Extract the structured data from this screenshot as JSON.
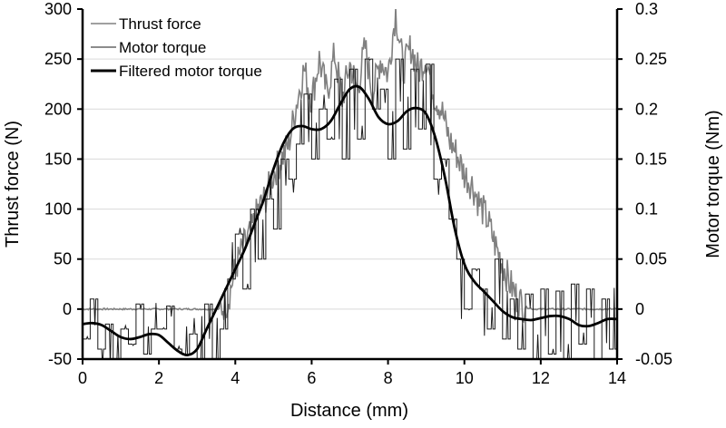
{
  "chart_data": {
    "type": "line",
    "xlabel": "Distance (mm)",
    "ylabel": "Thrust force (N)",
    "y2label": "Motor torque (Nm)",
    "xlim": [
      0,
      14
    ],
    "ylim": [
      -50,
      300
    ],
    "y2lim": [
      -0.05,
      0.3
    ],
    "x_ticks": [
      "0",
      "2",
      "4",
      "6",
      "8",
      "10",
      "12",
      "14"
    ],
    "y_ticks": [
      "300",
      "250",
      "200",
      "150",
      "100",
      "50",
      "0",
      "-50"
    ],
    "y2_ticks": [
      "0.3",
      "0.25",
      "0.2",
      "0.15",
      "0.1",
      "0.05",
      "0",
      "-0.05"
    ],
    "grid": "horizontal",
    "legend_position": "top-left",
    "legend": [
      "Thrust force",
      "Motor torque",
      "Filtered motor torque"
    ],
    "colors": {
      "thrust": "#808080",
      "torque": "#1a1a1a",
      "filtered": "#000000",
      "grid": "#d9d9d9"
    },
    "series": [
      {
        "name": "Thrust force",
        "axis": "left",
        "x_start": 0,
        "x_step": 0.2,
        "values": [
          0,
          0,
          0,
          0,
          0,
          0,
          0,
          0,
          0,
          0,
          0,
          0,
          0,
          0,
          0,
          0,
          0,
          0,
          0,
          8,
          40,
          62,
          75,
          100,
          112,
          135,
          150,
          165,
          205,
          240,
          210,
          250,
          215,
          255,
          210,
          245,
          220,
          262,
          215,
          250,
          235,
          298,
          240,
          262,
          238,
          252,
          215,
          200,
          170,
          155,
          135,
          125,
          105,
          90,
          65,
          45,
          25,
          10,
          2,
          0,
          0,
          0,
          0,
          0,
          0,
          0,
          0,
          0,
          0,
          0,
          0
        ]
      },
      {
        "name": "Motor torque",
        "axis": "right",
        "x_start": 0,
        "x_step": 0.2,
        "values": [
          -0.03,
          0.01,
          -0.04,
          -0.015,
          -0.05,
          -0.02,
          -0.035,
          0.005,
          -0.045,
          -0.02,
          -0.02,
          0.003,
          -0.04,
          -0.045,
          -0.025,
          -0.05,
          0.005,
          -0.05,
          -0.02,
          0.03,
          0.075,
          0.02,
          0.1,
          0.05,
          0.11,
          0.08,
          0.15,
          0.13,
          0.165,
          0.215,
          0.15,
          0.2,
          0.17,
          0.23,
          0.15,
          0.24,
          0.17,
          0.25,
          0.2,
          0.22,
          0.15,
          0.25,
          0.16,
          0.24,
          0.18,
          0.245,
          0.13,
          0.15,
          0.09,
          0.05,
          0.0,
          0.04,
          0.02,
          -0.02,
          0.05,
          -0.03,
          0.01,
          -0.04,
          0.015,
          -0.05,
          0.02,
          -0.045,
          0.018,
          -0.05,
          0.025,
          -0.035,
          0.02,
          -0.05,
          0.01,
          -0.04,
          0.02
        ]
      },
      {
        "name": "Filtered motor torque",
        "axis": "right",
        "x_start": 0,
        "x_step": 0.25,
        "values": [
          -0.015,
          -0.014,
          -0.016,
          -0.022,
          -0.028,
          -0.03,
          -0.028,
          -0.025,
          -0.026,
          -0.034,
          -0.042,
          -0.046,
          -0.04,
          -0.02,
          0.0,
          0.02,
          0.04,
          0.06,
          0.085,
          0.11,
          0.14,
          0.165,
          0.18,
          0.183,
          0.18,
          0.18,
          0.188,
          0.205,
          0.22,
          0.222,
          0.21,
          0.192,
          0.185,
          0.188,
          0.198,
          0.201,
          0.195,
          0.17,
          0.13,
          0.08,
          0.045,
          0.028,
          0.018,
          0.008,
          -0.002,
          -0.008,
          -0.01,
          -0.011,
          -0.009,
          -0.007,
          -0.007,
          -0.01,
          -0.016,
          -0.017,
          -0.014,
          -0.01,
          -0.01
        ]
      }
    ]
  }
}
